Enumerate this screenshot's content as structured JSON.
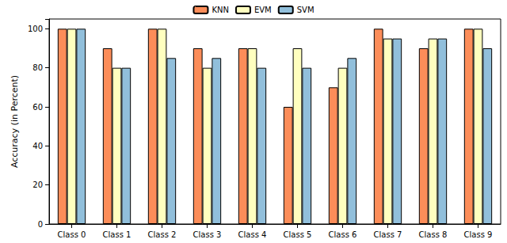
{
  "chart_data": {
    "type": "bar",
    "y_label": "Accuracy (in Percent)",
    "categories": [
      "Class 0",
      "Class 1",
      "Class 2",
      "Class 3",
      "Class 4",
      "Class 5",
      "Class 6",
      "Class 7",
      "Class 8",
      "Class 9"
    ],
    "series": [
      {
        "name": "KNN",
        "color": "#fc8d59",
        "values": [
          100,
          90,
          100,
          90,
          90,
          60,
          70,
          100,
          90,
          100
        ]
      },
      {
        "name": "EVM",
        "color": "#ffffbf",
        "values": [
          100,
          80,
          100,
          80,
          90,
          90,
          80,
          95,
          95,
          100
        ]
      },
      {
        "name": "SVM",
        "color": "#91bfdb",
        "values": [
          100,
          80,
          85,
          85,
          80,
          80,
          85,
          95,
          95,
          90
        ]
      }
    ],
    "ylim": [
      0,
      105
    ],
    "yticks": [
      0,
      20,
      40,
      60,
      80,
      100
    ],
    "grid": false,
    "legend": "top"
  }
}
